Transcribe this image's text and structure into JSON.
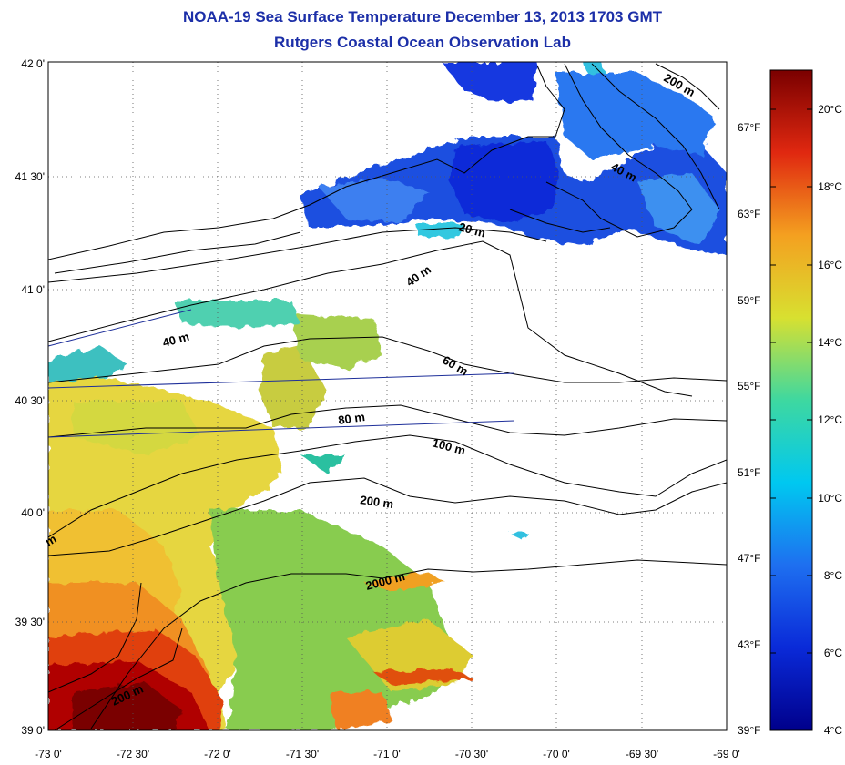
{
  "header": {
    "title": "NOAA-19 Sea Surface Temperature December 13, 2013 1703 GMT",
    "subtitle": "Rutgers Coastal Ocean Observation Lab"
  },
  "axes": {
    "lat_labels": [
      "42 0'",
      "41 30'",
      "41 0'",
      "40 30'",
      "40 0'",
      "39 30'",
      "39 0'"
    ],
    "lon_labels": [
      "-73 0'",
      "-72 30'",
      "-72 0'",
      "-71 30'",
      "-71 0'",
      "-70 30'",
      "-70 0'",
      "-69 30'",
      "-69 0'"
    ]
  },
  "colorbar": {
    "celsius": [
      "20°C",
      "18°C",
      "16°C",
      "14°C",
      "12°C",
      "10°C",
      "8°C",
      "6°C",
      "4°C"
    ],
    "fahrenheit": [
      "67°F",
      "63°F",
      "59°F",
      "55°F",
      "51°F",
      "47°F",
      "43°F",
      "39°F"
    ]
  },
  "isobaths": [
    "200 m",
    "40 m",
    "20 m",
    "40 m",
    "40 m",
    "60 m",
    "80 m",
    "100 m",
    "200 m",
    "2000 m",
    "200 m",
    "m"
  ],
  "colors": {
    "title": "#1c2fa8",
    "warm": "#8b0000",
    "cold": "#0a1a8c"
  }
}
